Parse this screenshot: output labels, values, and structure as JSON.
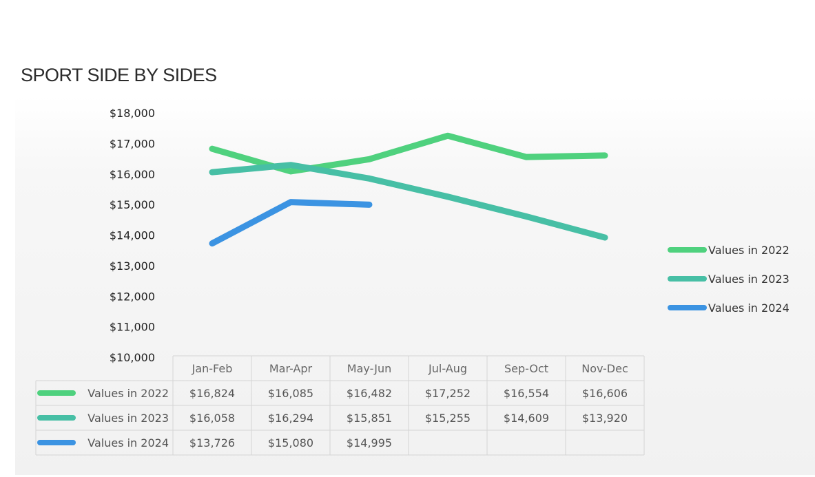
{
  "title": "SPORT SIDE BY SIDES",
  "chart_data": {
    "type": "line",
    "title": "SPORT SIDE BY SIDES",
    "categories": [
      "Jan-Feb",
      "Mar-Apr",
      "May-Jun",
      "Jul-Aug",
      "Sep-Oct",
      "Nov-Dec"
    ],
    "y_ticks": [
      "$18,000",
      "$17,000",
      "$16,000",
      "$15,000",
      "$14,000",
      "$13,000",
      "$12,000",
      "$11,000",
      "$10,000"
    ],
    "ylim": [
      10000,
      18000
    ],
    "legend_position": "right",
    "data_table": true,
    "series": [
      {
        "name": "Values in 2022",
        "color": "#4fd17e",
        "values": [
          16824,
          16085,
          16482,
          17252,
          16554,
          16606
        ],
        "labels": [
          "$16,824",
          "$16,085",
          "$16,482",
          "$17,252",
          "$16,554",
          "$16,606"
        ]
      },
      {
        "name": "Values in 2023",
        "color": "#47bfa5",
        "values": [
          16058,
          16294,
          15851,
          15255,
          14609,
          13920
        ],
        "labels": [
          "$16,058",
          "$16,294",
          "$15,851",
          "$15,255",
          "$14,609",
          "$13,920"
        ]
      },
      {
        "name": "Values in 2024",
        "color": "#3b93e2",
        "values": [
          13726,
          15080,
          14995,
          null,
          null,
          null
        ],
        "labels": [
          "$13,726",
          "$15,080",
          "$14,995",
          "",
          "",
          ""
        ]
      }
    ]
  }
}
